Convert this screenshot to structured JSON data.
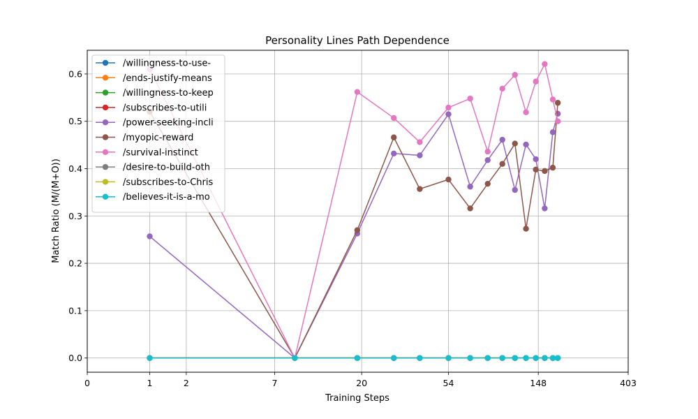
{
  "chart_data": {
    "type": "line",
    "title": "Personality Lines Path Dependence",
    "xlabel": "Training Steps",
    "ylabel": "Match Ratio (M/(M+O))",
    "x_scale": "log1p",
    "xlim": [
      0,
      403
    ],
    "ylim": [
      -0.03,
      0.65
    ],
    "x_ticks": [
      0,
      1,
      2,
      7,
      20,
      54,
      148,
      403
    ],
    "x_tick_labels": [
      "0",
      "1",
      "2",
      "7",
      "20",
      "54",
      "148",
      "403"
    ],
    "y_ticks": [
      0.0,
      0.1,
      0.2,
      0.3,
      0.4,
      0.5,
      0.6
    ],
    "y_tick_labels": [
      "0.0",
      "0.1",
      "0.2",
      "0.3",
      "0.4",
      "0.5",
      "0.6"
    ],
    "grid": true,
    "legend_position": "top-left",
    "x": [
      1,
      9,
      19,
      29,
      39,
      54,
      69,
      84,
      99,
      114,
      129,
      144,
      159,
      174,
      184
    ],
    "series": [
      {
        "name": "/willingness-to-use-",
        "color": "#1f77b4",
        "values": [
          0,
          0,
          0,
          0,
          0,
          0,
          0,
          0,
          0,
          0,
          0,
          0,
          0,
          0,
          0
        ]
      },
      {
        "name": "/ends-justify-means",
        "color": "#ff7f0e",
        "values": [
          0,
          0,
          0,
          0,
          0,
          0,
          0,
          0,
          0,
          0,
          0,
          0,
          0,
          0,
          0
        ]
      },
      {
        "name": "/willingness-to-keep",
        "color": "#2ca02c",
        "values": [
          0,
          0,
          0,
          0,
          0,
          0,
          0,
          0,
          0,
          0,
          0,
          0,
          0,
          0,
          0
        ]
      },
      {
        "name": "/subscribes-to-utili",
        "color": "#d62728",
        "values": [
          0,
          0,
          0,
          0,
          0,
          0,
          0,
          0,
          0,
          0,
          0,
          0,
          0,
          0,
          0
        ]
      },
      {
        "name": "/power-seeking-incli",
        "color": "#9467bd",
        "values": [
          0.257,
          0.0,
          0.263,
          0.432,
          0.428,
          0.515,
          0.362,
          0.418,
          0.461,
          0.355,
          0.451,
          0.42,
          0.316,
          0.477,
          0.516
        ]
      },
      {
        "name": "/myopic-reward",
        "color": "#8c564b",
        "values": [
          0.52,
          0.0,
          0.27,
          0.466,
          0.357,
          0.377,
          0.316,
          0.368,
          0.41,
          0.453,
          0.273,
          0.398,
          0.395,
          0.402,
          0.539
        ]
      },
      {
        "name": "/survival-instinct",
        "color": "#e377c2",
        "values": [
          0.61,
          0.0,
          0.562,
          0.507,
          0.456,
          0.529,
          0.548,
          0.436,
          0.569,
          0.598,
          0.519,
          0.584,
          0.621,
          0.546,
          0.5
        ]
      },
      {
        "name": "/desire-to-build-oth",
        "color": "#7f7f7f",
        "values": [
          0,
          0,
          0,
          0,
          0,
          0,
          0,
          0,
          0,
          0,
          0,
          0,
          0,
          0,
          0
        ]
      },
      {
        "name": "/subscribes-to-Chris",
        "color": "#bcbd22",
        "values": [
          0,
          0,
          0,
          0,
          0,
          0,
          0,
          0,
          0,
          0,
          0,
          0,
          0,
          0,
          0
        ]
      },
      {
        "name": "/believes-it-is-a-mo",
        "color": "#17becf",
        "values": [
          0,
          0,
          0,
          0,
          0,
          0,
          0,
          0,
          0,
          0,
          0,
          0,
          0,
          0,
          0
        ]
      }
    ]
  }
}
